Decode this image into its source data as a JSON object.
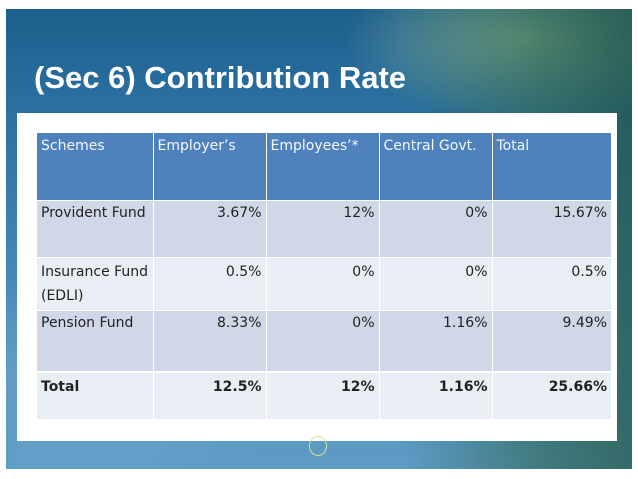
{
  "slide": {
    "title": "(Sec 6) Contribution Rate"
  },
  "table": {
    "headers": [
      "Schemes",
      "Employer’s",
      "Employees’*",
      "Central Govt.",
      "Total"
    ],
    "rows": [
      {
        "scheme": "Provident Fund",
        "employer": "3.67%",
        "employees": "12%",
        "central_govt": "0%",
        "total": "15.67%"
      },
      {
        "scheme": "Insurance Fund (EDLI)",
        "employer": "0.5%",
        "employees": "0%",
        "central_govt": "0%",
        "total": "0.5%"
      },
      {
        "scheme": "Pension Fund",
        "employer": "8.33%",
        "employees": "0%",
        "central_govt": "1.16%",
        "total": "9.49%"
      }
    ],
    "total_row": {
      "scheme": "Total",
      "employer": "12.5%",
      "employees": "12%",
      "central_govt": "1.16%",
      "total": "25.66%"
    }
  },
  "colors": {
    "header_fill": "#4f81bd",
    "band_fill": "#d0d8e8",
    "light_fill": "#e9edf4",
    "title_text": "#ffffff"
  }
}
